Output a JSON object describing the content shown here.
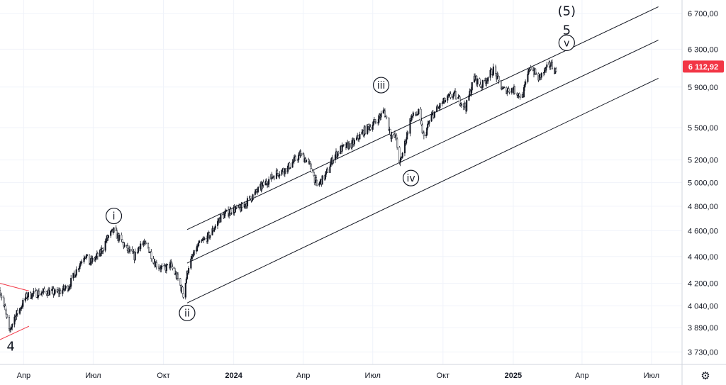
{
  "chart_data": {
    "type": "candlestick",
    "instrument_price_label": "6 112,92",
    "last_price": 6112.92,
    "ylim": [
      3650,
      6860
    ],
    "y_scale": "log",
    "y_ticks": [
      {
        "value": 6700,
        "label": "6 700,00"
      },
      {
        "value": 6300,
        "label": "6 300,00"
      },
      {
        "value": 5900,
        "label": "5 900,00"
      },
      {
        "value": 5500,
        "label": "5 500,00"
      },
      {
        "value": 5200,
        "label": "5 200,00"
      },
      {
        "value": 5000,
        "label": "5 000,00"
      },
      {
        "value": 4800,
        "label": "4 800,00"
      },
      {
        "value": 4600,
        "label": "4 600,00"
      },
      {
        "value": 4400,
        "label": "4 400,00"
      },
      {
        "value": 4200,
        "label": "4 200,00"
      },
      {
        "value": 4040,
        "label": "4 040,00"
      },
      {
        "value": 3890,
        "label": "3 890,00"
      },
      {
        "value": 3730,
        "label": "3 730,00"
      }
    ],
    "x_ticks": [
      {
        "date": "2023-04-01",
        "label": "Апр",
        "bold": false
      },
      {
        "date": "2023-07-01",
        "label": "Июл",
        "bold": false
      },
      {
        "date": "2023-10-01",
        "label": "Окт",
        "bold": false
      },
      {
        "date": "2024-01-01",
        "label": "2024",
        "bold": true
      },
      {
        "date": "2024-04-01",
        "label": "Апр",
        "bold": false
      },
      {
        "date": "2024-07-01",
        "label": "Июл",
        "bold": false
      },
      {
        "date": "2024-10-01",
        "label": "Окт",
        "bold": false
      },
      {
        "date": "2025-01-01",
        "label": "2025",
        "bold": true
      },
      {
        "date": "2025-04-01",
        "label": "Апр",
        "bold": false
      },
      {
        "date": "2025-07-01",
        "label": "Июл",
        "bold": false
      }
    ],
    "xlim": [
      "2023-03-01",
      "2025-08-10"
    ],
    "price_path": [
      [
        "2023-03-01",
        4150
      ],
      [
        "2023-03-08",
        4000
      ],
      [
        "2023-03-13",
        3860
      ],
      [
        "2023-03-20",
        3960
      ],
      [
        "2023-03-28",
        4030
      ],
      [
        "2023-04-05",
        4110
      ],
      [
        "2023-04-12",
        4120
      ],
      [
        "2023-04-20",
        4130
      ],
      [
        "2023-05-01",
        4140
      ],
      [
        "2023-05-15",
        4130
      ],
      [
        "2023-05-30",
        4180
      ],
      [
        "2023-06-12",
        4330
      ],
      [
        "2023-06-20",
        4420
      ],
      [
        "2023-06-26",
        4350
      ],
      [
        "2023-07-10",
        4420
      ],
      [
        "2023-07-20",
        4550
      ],
      [
        "2023-07-28",
        4600
      ],
      [
        "2023-08-05",
        4530
      ],
      [
        "2023-08-15",
        4450
      ],
      [
        "2023-08-24",
        4400
      ],
      [
        "2023-09-01",
        4500
      ],
      [
        "2023-09-10",
        4480
      ],
      [
        "2023-09-20",
        4350
      ],
      [
        "2023-10-01",
        4300
      ],
      [
        "2023-10-10",
        4340
      ],
      [
        "2023-10-20",
        4230
      ],
      [
        "2023-10-27",
        4120
      ],
      [
        "2023-11-03",
        4330
      ],
      [
        "2023-11-15",
        4480
      ],
      [
        "2023-12-01",
        4570
      ],
      [
        "2023-12-15",
        4710
      ],
      [
        "2023-12-29",
        4770
      ],
      [
        "2024-01-10",
        4780
      ],
      [
        "2024-01-25",
        4880
      ],
      [
        "2024-02-10",
        4990
      ],
      [
        "2024-02-25",
        5080
      ],
      [
        "2024-03-10",
        5120
      ],
      [
        "2024-03-28",
        5250
      ],
      [
        "2024-04-05",
        5200
      ],
      [
        "2024-04-12",
        5120
      ],
      [
        "2024-04-19",
        4970
      ],
      [
        "2024-04-30",
        5060
      ],
      [
        "2024-05-10",
        5220
      ],
      [
        "2024-05-20",
        5300
      ],
      [
        "2024-06-05",
        5350
      ],
      [
        "2024-06-20",
        5470
      ],
      [
        "2024-07-05",
        5560
      ],
      [
        "2024-07-16",
        5660
      ],
      [
        "2024-07-25",
        5430
      ],
      [
        "2024-08-01",
        5400
      ],
      [
        "2024-08-05",
        5150
      ],
      [
        "2024-08-12",
        5350
      ],
      [
        "2024-08-20",
        5600
      ],
      [
        "2024-08-30",
        5640
      ],
      [
        "2024-09-06",
        5400
      ],
      [
        "2024-09-15",
        5600
      ],
      [
        "2024-09-30",
        5740
      ],
      [
        "2024-10-15",
        5830
      ],
      [
        "2024-10-31",
        5700
      ],
      [
        "2024-11-11",
        6000
      ],
      [
        "2024-11-20",
        5910
      ],
      [
        "2024-12-06",
        6080
      ],
      [
        "2024-12-18",
        5870
      ],
      [
        "2024-12-31",
        5880
      ],
      [
        "2025-01-13",
        5800
      ],
      [
        "2025-01-23",
        6120
      ],
      [
        "2025-02-03",
        5990
      ],
      [
        "2025-02-19",
        6140
      ],
      [
        "2025-02-26",
        6060
      ]
    ],
    "channels": [
      {
        "name": "upper",
        "from": [
          "2023-11-01",
          4610
        ],
        "to": [
          "2025-07-10",
          6780
        ]
      },
      {
        "name": "middle",
        "from": [
          "2023-11-01",
          4350
        ],
        "to": [
          "2025-07-10",
          6400
        ]
      },
      {
        "name": "lower",
        "from": [
          "2023-11-01",
          4060
        ],
        "to": [
          "2025-07-10",
          5990
        ]
      }
    ],
    "triangle_lines": [
      {
        "from": [
          "2023-03-01",
          4200
        ],
        "to": [
          "2023-04-08",
          4145
        ]
      },
      {
        "from": [
          "2023-03-01",
          3810
        ],
        "to": [
          "2023-04-08",
          3900
        ]
      }
    ],
    "wave_labels": [
      {
        "text": "4",
        "date": "2023-03-15",
        "price": 3770,
        "circled": false
      },
      {
        "text": "i",
        "date": "2023-07-28",
        "price": 4720,
        "circled": true
      },
      {
        "text": "ii",
        "date": "2023-11-01",
        "price": 3990,
        "circled": true
      },
      {
        "text": "iii",
        "date": "2024-07-12",
        "price": 5920,
        "circled": true
      },
      {
        "text": "iv",
        "date": "2024-08-20",
        "price": 5040,
        "circled": true
      },
      {
        "text": "v",
        "date": "2025-03-12",
        "price": 6370,
        "circled": true
      },
      {
        "text": "5",
        "date": "2025-03-12",
        "price": 6520,
        "circled": false
      },
      {
        "text": "(5)",
        "date": "2025-03-12",
        "price": 6740,
        "circled": false
      }
    ]
  },
  "toolbar": {
    "settings_icon": "gear-icon"
  },
  "colors": {
    "grid": "#f0f3fa",
    "axis_text": "#131722",
    "bull": "#131722",
    "bear": "#ffffff",
    "channel": "#131722",
    "triangle": "#f23645",
    "price_badge": "#f23645",
    "price_badge_text": "#ffffff"
  }
}
